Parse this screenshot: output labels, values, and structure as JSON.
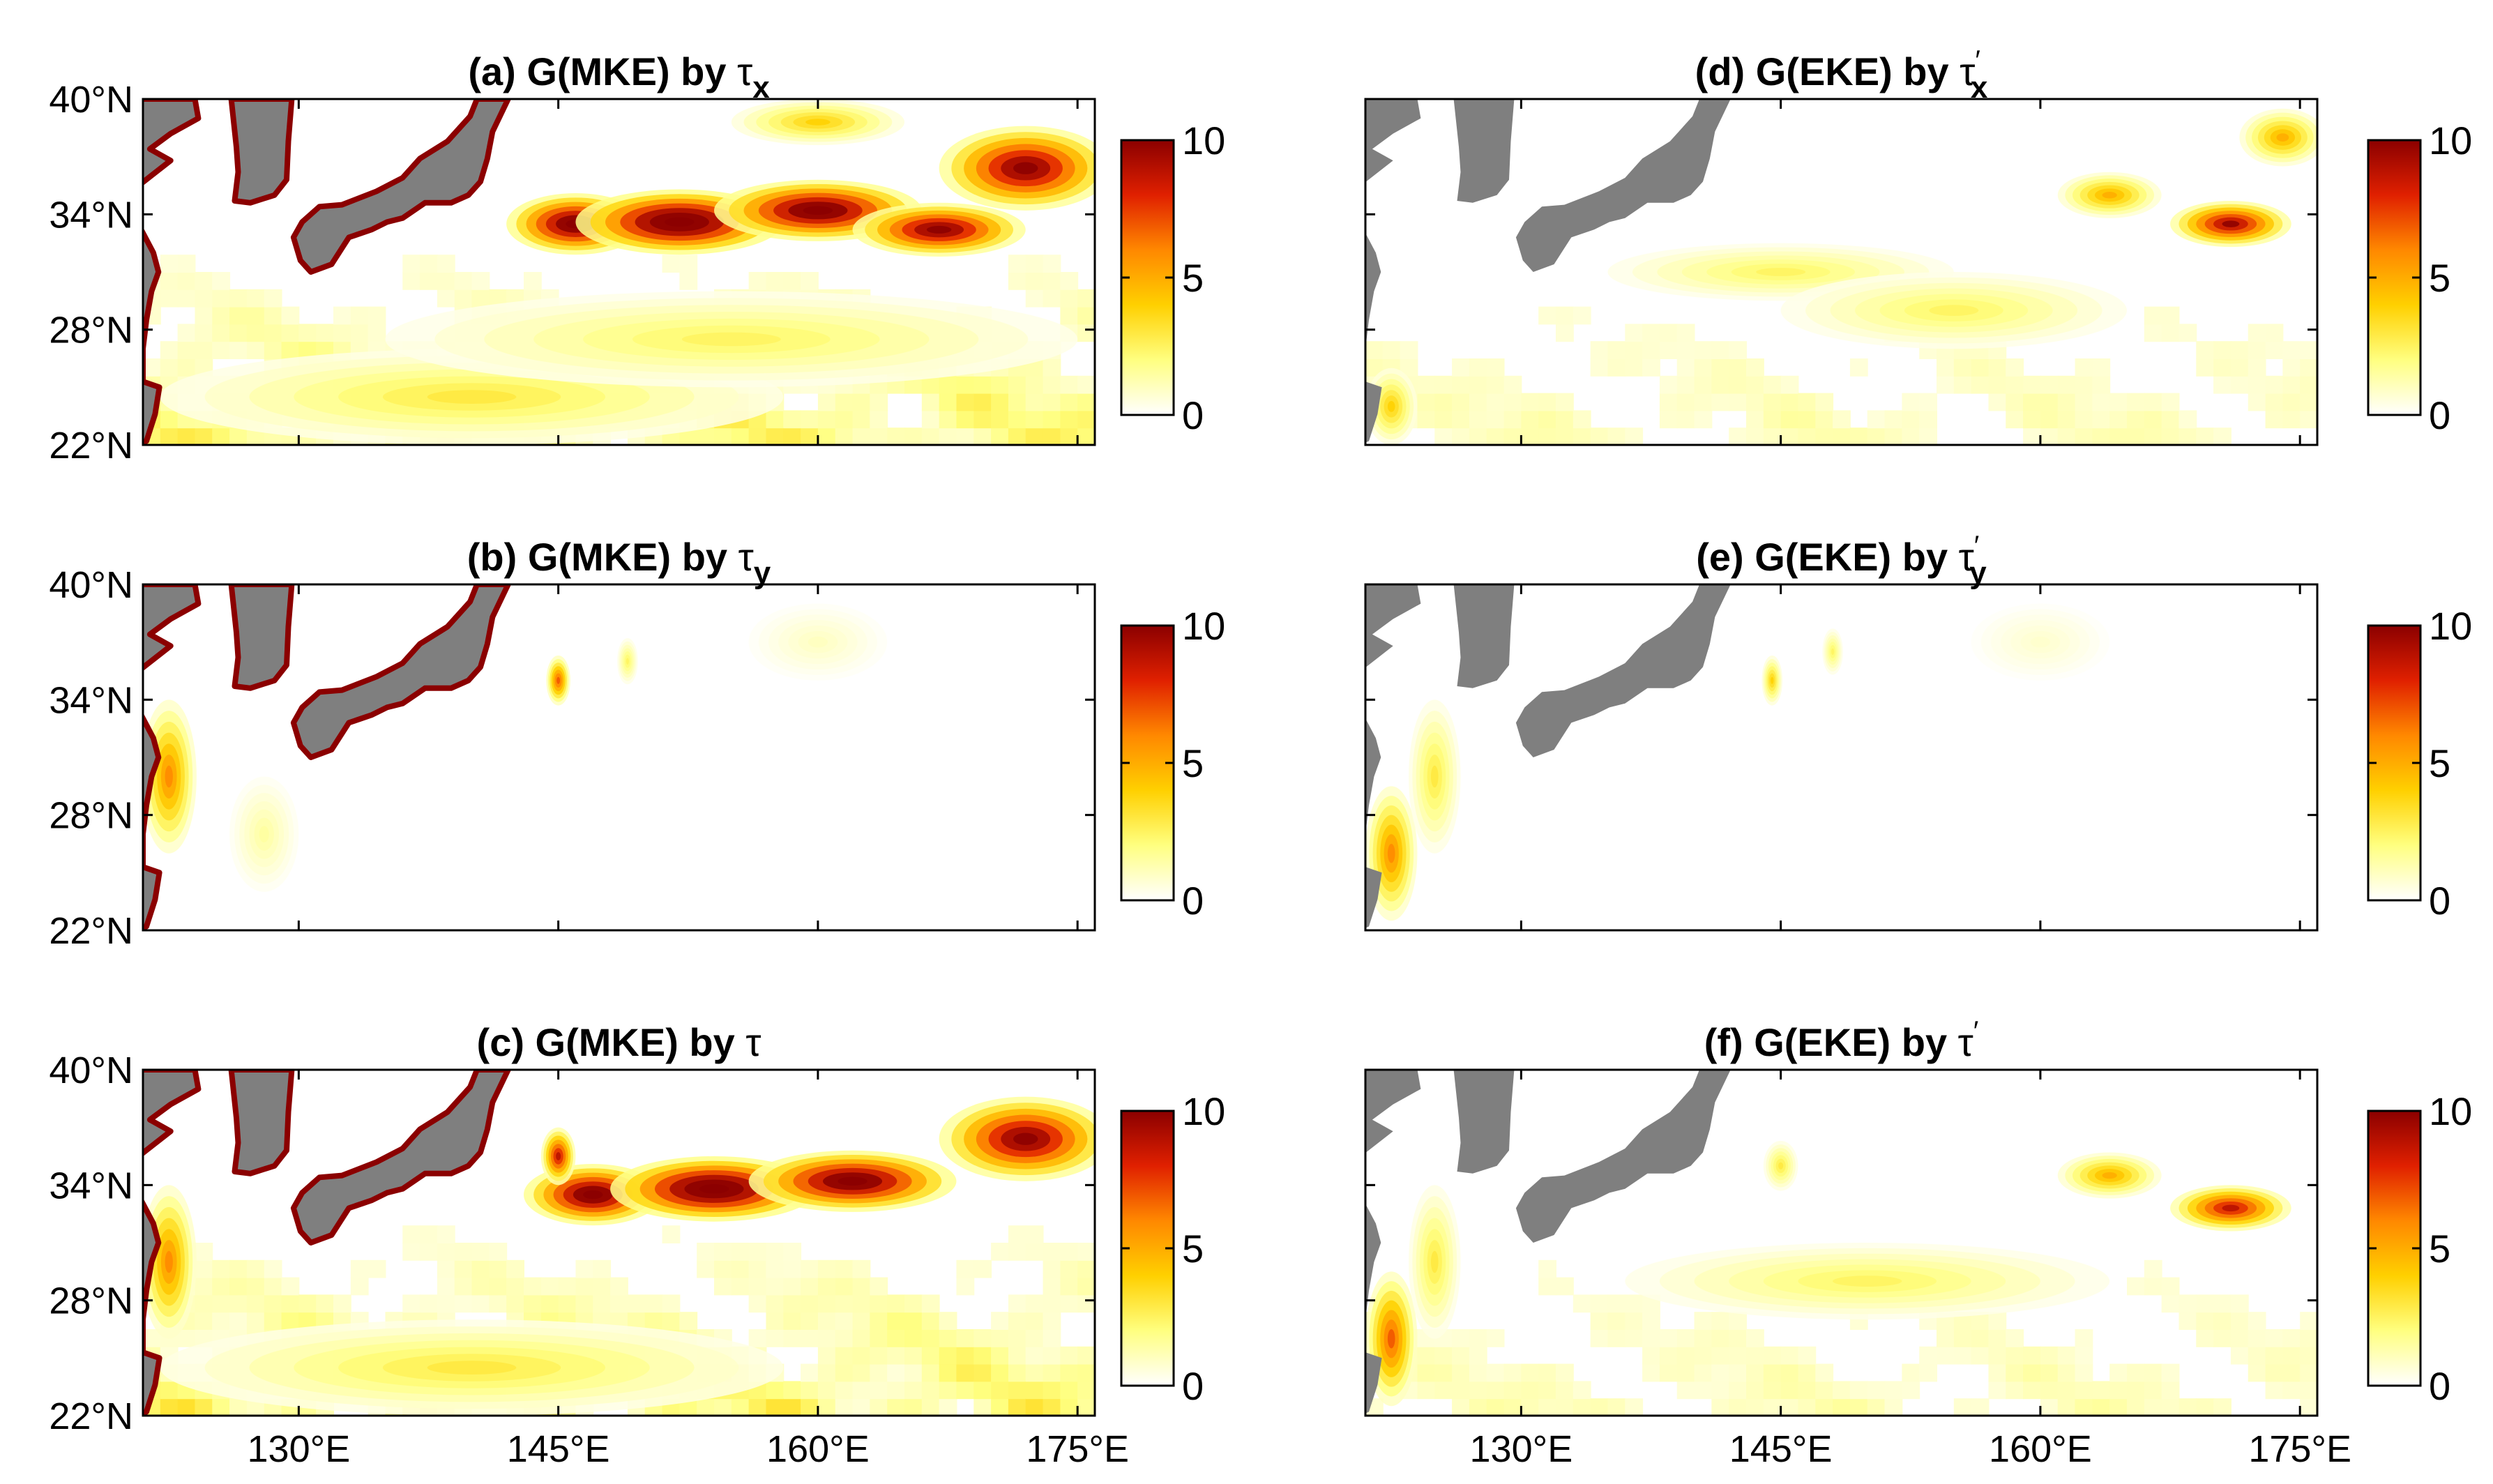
{
  "figure": {
    "colormap": [
      "#ffffff",
      "#ffff80",
      "#ffd000",
      "#ff8800",
      "#e02000",
      "#8b0000"
    ],
    "land_color": "#7f7f7f",
    "x_ticks": [
      "130°E",
      "145°E",
      "160°E",
      "175°E"
    ],
    "y_ticks": [
      "40°N",
      "34°N",
      "28°N",
      "22°N"
    ],
    "colorbar_ticks": [
      "10",
      "5",
      "0"
    ]
  },
  "chart_data": [
    {
      "id": "a",
      "type": "heatmap",
      "title_prefix": "(a) G(MKE) by ",
      "symbol": "τ",
      "subscript": "x",
      "prime": "",
      "xlim": [
        121,
        176
      ],
      "ylim": [
        22,
        40
      ],
      "clim": [
        0,
        10
      ],
      "hotspots": [
        {
          "lon": 146,
          "lat": 33.5,
          "rlon": 4,
          "rlat": 1.6,
          "value": 12
        },
        {
          "lon": 152,
          "lat": 33.6,
          "rlon": 6,
          "rlat": 1.7,
          "value": 13
        },
        {
          "lon": 160,
          "lat": 34.2,
          "rlon": 6,
          "rlat": 1.6,
          "value": 12
        },
        {
          "lon": 167,
          "lat": 33.2,
          "rlon": 5,
          "rlat": 1.4,
          "value": 11
        },
        {
          "lon": 172,
          "lat": 36.4,
          "rlon": 5,
          "rlat": 2.2,
          "value": 11
        },
        {
          "lon": 160,
          "lat": 38.8,
          "rlon": 5,
          "rlat": 1.2,
          "value": 4
        },
        {
          "lon": 140,
          "lat": 24.5,
          "rlon": 18,
          "rlat": 2.5,
          "value": 3
        },
        {
          "lon": 155,
          "lat": 27.5,
          "rlon": 20,
          "rlat": 2.5,
          "value": 2.5
        }
      ]
    },
    {
      "id": "b",
      "type": "heatmap",
      "title_prefix": "(b) G(MKE) by ",
      "symbol": "τ",
      "subscript": "y",
      "prime": "",
      "xlim": [
        121,
        176
      ],
      "ylim": [
        22,
        40
      ],
      "clim": [
        0,
        10
      ],
      "hotspots": [
        {
          "lon": 122.5,
          "lat": 30,
          "rlon": 1.6,
          "rlat": 4,
          "value": 6
        },
        {
          "lon": 145,
          "lat": 35,
          "rlon": 0.7,
          "rlat": 1.3,
          "value": 7
        },
        {
          "lon": 149,
          "lat": 36,
          "rlon": 0.6,
          "rlat": 1.2,
          "value": 2.5
        },
        {
          "lon": 128,
          "lat": 27,
          "rlon": 2,
          "rlat": 3,
          "value": 1.5
        },
        {
          "lon": 160,
          "lat": 37,
          "rlon": 4,
          "rlat": 2,
          "value": 1
        }
      ]
    },
    {
      "id": "c",
      "type": "heatmap",
      "title_prefix": "(c) G(MKE) by ",
      "symbol": "τ",
      "subscript": "",
      "prime": "",
      "xlim": [
        121,
        176
      ],
      "ylim": [
        22,
        40
      ],
      "clim": [
        0,
        10
      ],
      "hotspots": [
        {
          "lon": 147,
          "lat": 33.5,
          "rlon": 4,
          "rlat": 1.6,
          "value": 12
        },
        {
          "lon": 154,
          "lat": 33.8,
          "rlon": 6,
          "rlat": 1.7,
          "value": 13
        },
        {
          "lon": 162,
          "lat": 34.2,
          "rlon": 6,
          "rlat": 1.6,
          "value": 12
        },
        {
          "lon": 172,
          "lat": 36.4,
          "rlon": 5,
          "rlat": 2.2,
          "value": 11
        },
        {
          "lon": 145,
          "lat": 35.5,
          "rlon": 1,
          "rlat": 1.5,
          "value": 9
        },
        {
          "lon": 122.5,
          "lat": 30,
          "rlon": 1.6,
          "rlat": 4,
          "value": 6
        },
        {
          "lon": 140,
          "lat": 24.5,
          "rlon": 18,
          "rlat": 2.5,
          "value": 3
        }
      ]
    },
    {
      "id": "d",
      "type": "heatmap",
      "title_prefix": "(d) G(EKE) by ",
      "symbol": "τ",
      "subscript": "x",
      "prime": "′",
      "xlim": [
        121,
        176
      ],
      "ylim": [
        22,
        40
      ],
      "clim": [
        0,
        10
      ],
      "hotspots": [
        {
          "lon": 171,
          "lat": 33.5,
          "rlon": 3.5,
          "rlat": 1.2,
          "value": 10
        },
        {
          "lon": 164,
          "lat": 35,
          "rlon": 3,
          "rlat": 1.2,
          "value": 5
        },
        {
          "lon": 174,
          "lat": 38,
          "rlon": 2.5,
          "rlat": 1.5,
          "value": 5
        },
        {
          "lon": 145,
          "lat": 31,
          "rlon": 10,
          "rlat": 1.5,
          "value": 2.5
        },
        {
          "lon": 155,
          "lat": 29,
          "rlon": 10,
          "rlat": 2,
          "value": 2.5
        },
        {
          "lon": 122.5,
          "lat": 24,
          "rlon": 1.5,
          "rlat": 2,
          "value": 4
        }
      ]
    },
    {
      "id": "e",
      "type": "heatmap",
      "title_prefix": "(e) G(EKE) by ",
      "symbol": "τ",
      "subscript": "y",
      "prime": "′",
      "xlim": [
        121,
        176
      ],
      "ylim": [
        22,
        40
      ],
      "clim": [
        0,
        10
      ],
      "hotspots": [
        {
          "lon": 122.5,
          "lat": 26,
          "rlon": 1.5,
          "rlat": 3.5,
          "value": 6
        },
        {
          "lon": 125,
          "lat": 30,
          "rlon": 1.5,
          "rlat": 4,
          "value": 3
        },
        {
          "lon": 144.5,
          "lat": 35,
          "rlon": 0.6,
          "rlat": 1.3,
          "value": 4
        },
        {
          "lon": 148,
          "lat": 36.5,
          "rlon": 0.6,
          "rlat": 1.2,
          "value": 2.5
        },
        {
          "lon": 160,
          "lat": 37,
          "rlon": 4,
          "rlat": 2,
          "value": 0.8
        }
      ]
    },
    {
      "id": "f",
      "type": "heatmap",
      "title_prefix": "(f) G(EKE) by ",
      "symbol": "τ",
      "subscript": "",
      "prime": "′",
      "xlim": [
        121,
        176
      ],
      "ylim": [
        22,
        40
      ],
      "clim": [
        0,
        10
      ],
      "hotspots": [
        {
          "lon": 122.5,
          "lat": 26,
          "rlon": 1.5,
          "rlat": 3.5,
          "value": 7
        },
        {
          "lon": 125,
          "lat": 30,
          "rlon": 1.5,
          "rlat": 4,
          "value": 3
        },
        {
          "lon": 171,
          "lat": 32.8,
          "rlon": 3.5,
          "rlat": 1.2,
          "value": 9
        },
        {
          "lon": 164,
          "lat": 34.5,
          "rlon": 3,
          "rlat": 1.2,
          "value": 5
        },
        {
          "lon": 145,
          "lat": 35,
          "rlon": 1,
          "rlat": 1.3,
          "value": 3
        },
        {
          "lon": 150,
          "lat": 29,
          "rlon": 14,
          "rlat": 2,
          "value": 2.5
        }
      ]
    }
  ]
}
